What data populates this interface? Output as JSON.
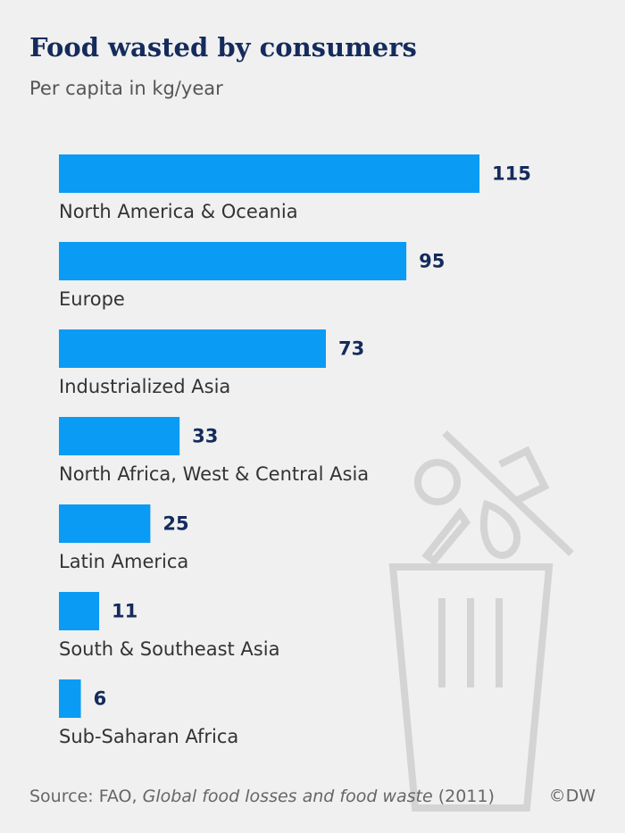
{
  "chart_data": {
    "type": "bar",
    "orientation": "horizontal",
    "title": "Food wasted by consumers",
    "subtitle": "Per capita in kg/year",
    "categories": [
      "North America & Oceania",
      "Europe",
      "Industrialized Asia",
      "North Africa, West & Central Asia",
      "Latin America",
      "South & Southeast Asia",
      "Sub-Saharan Africa"
    ],
    "values": [
      115,
      95,
      73,
      33,
      25,
      11,
      6
    ],
    "color": "#0a9bf5",
    "source": {
      "label": "Source: FAO,",
      "publication": "Global food losses and food waste",
      "year": "(2011)"
    },
    "credit": "©DW"
  }
}
